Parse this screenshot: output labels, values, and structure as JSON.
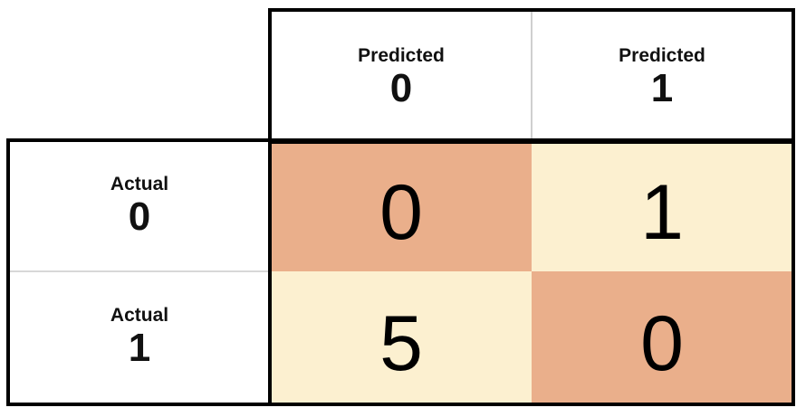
{
  "colors": {
    "diagonal": "#eaaf8b",
    "off_diagonal": "#fcf0d0",
    "border": "#000000"
  },
  "columns": [
    {
      "label": "Predicted",
      "value": "0"
    },
    {
      "label": "Predicted",
      "value": "1"
    }
  ],
  "rows": [
    {
      "label": "Actual",
      "value": "0",
      "cells": [
        "0",
        "1"
      ]
    },
    {
      "label": "Actual",
      "value": "1",
      "cells": [
        "5",
        "0"
      ]
    }
  ]
}
